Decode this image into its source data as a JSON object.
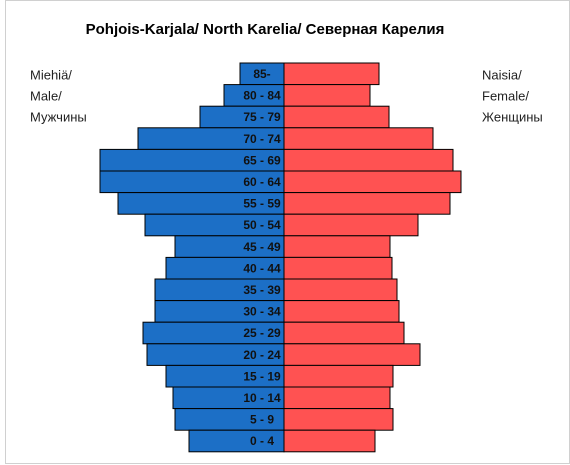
{
  "chart_data": {
    "type": "population-pyramid",
    "title": "Pohjois-Karjala/ North Karelia/ Северная Карелия",
    "categories": [
      "85-",
      "80 - 84",
      "75 - 79",
      "70 - 74",
      "65 - 69",
      "60 - 64",
      "55 - 59",
      "50 - 54",
      "45 - 49",
      "40 - 44",
      "35 - 39",
      "30 - 34",
      "25 - 29",
      "20 - 24",
      "15 - 19",
      "10 - 14",
      "5 - 9",
      "0 - 4"
    ],
    "series": [
      {
        "name": [
          "Miehiä/",
          "Male/",
          "Мужчины"
        ],
        "color": "#1c6fc6",
        "values": [
          44,
          60,
          84,
          146,
          184,
          184,
          166,
          139,
          109,
          118,
          129,
          129,
          141,
          137,
          118,
          111,
          109,
          95
        ]
      },
      {
        "name": [
          "Naisia/",
          "Female/",
          "Женщины"
        ],
        "color": "#ff5252",
        "values": [
          95,
          86,
          105,
          149,
          169,
          177,
          166,
          134,
          106,
          108,
          113,
          115,
          120,
          136,
          109,
          106,
          109,
          91
        ]
      }
    ],
    "xlim": [
      0,
      200
    ]
  }
}
